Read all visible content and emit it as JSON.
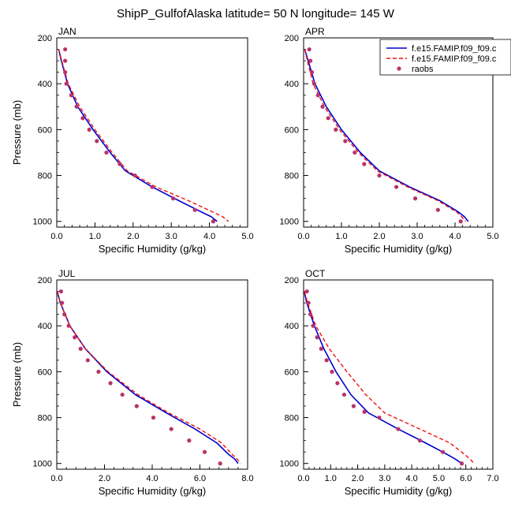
{
  "figure": {
    "title": "ShipP_GulfofAlaska  latitude= 50 N longitude= 145 W"
  },
  "legend": {
    "entries": [
      {
        "label": "f.e15.FAMIP.f09_f09.c",
        "style": "solid",
        "color": "#0000cc"
      },
      {
        "label": "f.e15.FAMIP.f09_f09.c",
        "style": "dashed",
        "color": "#ee1111"
      },
      {
        "label": "raobs",
        "style": "marker",
        "color": "#b8336a"
      }
    ]
  },
  "chart_data": [
    {
      "type": "line",
      "panel_label": "JAN",
      "xlabel": "Specific Humidity (g/kg)",
      "ylabel": "Pressure (mb)",
      "xlim": [
        0,
        5
      ],
      "ylim": [
        200,
        1025
      ],
      "xticks": [
        "0.0",
        "1.0",
        "2.0",
        "3.0",
        "4.0",
        "5.0"
      ],
      "xtick_values": [
        0,
        1,
        2,
        3,
        4,
        5
      ],
      "yticks": [
        "200",
        "400",
        "600",
        "800",
        "1000"
      ],
      "ytick_values": [
        200,
        400,
        600,
        800,
        1000
      ],
      "series": [
        {
          "name": "f.e15.FAMIP.f09_f09.c",
          "style": "solid",
          "color": "#0000cc",
          "x": [
            0.05,
            0.12,
            0.28,
            0.55,
            0.95,
            1.4,
            1.8,
            2.5,
            3.2,
            3.8,
            4.05,
            4.2
          ],
          "y": [
            250,
            300,
            400,
            500,
            600,
            700,
            780,
            850,
            910,
            960,
            980,
            1000
          ]
        },
        {
          "name": "f.e15.FAMIP.f09_f09.c",
          "style": "dashed",
          "color": "#ee1111",
          "x": [
            0.05,
            0.13,
            0.3,
            0.6,
            1.0,
            1.45,
            1.85,
            2.6,
            3.45,
            4.1,
            4.35,
            4.5
          ],
          "y": [
            250,
            300,
            400,
            500,
            600,
            700,
            780,
            850,
            910,
            960,
            980,
            1000
          ]
        },
        {
          "name": "raobs",
          "style": "marker",
          "color": "#b8336a",
          "x": [
            0.22,
            0.22,
            0.22,
            0.25,
            0.38,
            0.52,
            0.68,
            0.85,
            1.05,
            1.3,
            1.65,
            2.05,
            2.5,
            3.05,
            3.62,
            4.1
          ],
          "y": [
            250,
            300,
            350,
            400,
            450,
            500,
            550,
            600,
            650,
            700,
            750,
            800,
            850,
            900,
            950,
            1000
          ]
        }
      ]
    },
    {
      "type": "line",
      "panel_label": "APR",
      "xlabel": "Specific Humidity (g/kg)",
      "ylabel": "",
      "xlim": [
        0,
        5
      ],
      "ylim": [
        200,
        1025
      ],
      "xticks": [
        "0.0",
        "1.0",
        "2.0",
        "3.0",
        "4.0",
        "5.0"
      ],
      "xtick_values": [
        0,
        1,
        2,
        3,
        4,
        5
      ],
      "yticks": [
        "200",
        "400",
        "600",
        "800",
        "1000"
      ],
      "ytick_values": [
        200,
        400,
        600,
        800,
        1000
      ],
      "series": [
        {
          "name": "f.e15.FAMIP.f09_f09.c",
          "style": "solid",
          "color": "#0000cc",
          "x": [
            0.03,
            0.12,
            0.3,
            0.6,
            1.0,
            1.5,
            2.0,
            2.8,
            3.6,
            4.1,
            4.25,
            4.35
          ],
          "y": [
            250,
            300,
            400,
            500,
            600,
            700,
            780,
            850,
            910,
            960,
            980,
            1000
          ]
        },
        {
          "name": "f.e15.FAMIP.f09_f09.c",
          "style": "dashed",
          "color": "#ee1111",
          "x": [
            0.03,
            0.1,
            0.25,
            0.55,
            0.95,
            1.45,
            1.95,
            2.75,
            3.55,
            4.05,
            4.18,
            4.28
          ],
          "y": [
            250,
            300,
            400,
            500,
            600,
            700,
            780,
            850,
            910,
            960,
            980,
            1000
          ]
        },
        {
          "name": "raobs",
          "style": "marker",
          "color": "#b8336a",
          "x": [
            0.15,
            0.18,
            0.22,
            0.28,
            0.38,
            0.5,
            0.65,
            0.85,
            1.1,
            1.35,
            1.6,
            2.0,
            2.45,
            2.95,
            3.55,
            4.15
          ],
          "y": [
            250,
            300,
            350,
            400,
            450,
            500,
            550,
            600,
            650,
            700,
            750,
            800,
            850,
            900,
            950,
            1000
          ]
        }
      ]
    },
    {
      "type": "line",
      "panel_label": "JUL",
      "xlabel": "Specific Humidity (g/kg)",
      "ylabel": "Pressure (mb)",
      "xlim": [
        0,
        8
      ],
      "ylim": [
        200,
        1025
      ],
      "xticks": [
        "0.0",
        "2.0",
        "4.0",
        "6.0",
        "8.0"
      ],
      "xtick_values": [
        0,
        2,
        4,
        6,
        8
      ],
      "yticks": [
        "200",
        "400",
        "600",
        "800",
        "1000"
      ],
      "ytick_values": [
        200,
        400,
        600,
        800,
        1000
      ],
      "series": [
        {
          "name": "f.e15.FAMIP.f09_f09.c",
          "style": "solid",
          "color": "#0000cc",
          "x": [
            0.02,
            0.15,
            0.55,
            1.2,
            2.1,
            3.3,
            4.6,
            5.8,
            6.7,
            7.2,
            7.45,
            7.6
          ],
          "y": [
            250,
            300,
            400,
            500,
            600,
            700,
            780,
            850,
            910,
            960,
            980,
            1000
          ]
        },
        {
          "name": "f.e15.FAMIP.f09_f09.c",
          "style": "dashed",
          "color": "#ee1111",
          "x": [
            0.02,
            0.15,
            0.55,
            1.2,
            2.15,
            3.4,
            4.7,
            6.0,
            6.9,
            7.35,
            7.55,
            7.7
          ],
          "y": [
            250,
            300,
            400,
            500,
            600,
            700,
            780,
            850,
            910,
            960,
            980,
            1000
          ]
        },
        {
          "name": "raobs",
          "style": "marker",
          "color": "#b8336a",
          "x": [
            0.18,
            0.22,
            0.32,
            0.5,
            0.75,
            1.0,
            1.3,
            1.75,
            2.25,
            2.75,
            3.35,
            4.05,
            4.8,
            5.55,
            6.2,
            6.85
          ],
          "y": [
            250,
            300,
            350,
            400,
            450,
            500,
            550,
            600,
            650,
            700,
            750,
            800,
            850,
            900,
            950,
            1000
          ]
        }
      ]
    },
    {
      "type": "line",
      "panel_label": "OCT",
      "xlabel": "Specific Humidity (g/kg)",
      "ylabel": "",
      "xlim": [
        0,
        7
      ],
      "ylim": [
        200,
        1025
      ],
      "xticks": [
        "0.0",
        "1.0",
        "2.0",
        "3.0",
        "4.0",
        "5.0",
        "6.0",
        "7.0"
      ],
      "xtick_values": [
        0,
        1,
        2,
        3,
        4,
        5,
        6,
        7
      ],
      "yticks": [
        "200",
        "400",
        "600",
        "800",
        "1000"
      ],
      "ytick_values": [
        200,
        400,
        600,
        800,
        1000
      ],
      "series": [
        {
          "name": "f.e15.FAMIP.f09_f09.c",
          "style": "solid",
          "color": "#0000cc",
          "x": [
            0.02,
            0.12,
            0.4,
            0.75,
            1.2,
            1.75,
            2.4,
            3.5,
            4.5,
            5.3,
            5.6,
            5.85
          ],
          "y": [
            250,
            300,
            400,
            500,
            600,
            700,
            780,
            850,
            910,
            960,
            980,
            1000
          ]
        },
        {
          "name": "f.e15.FAMIP.f09_f09.c",
          "style": "dashed",
          "color": "#ee1111",
          "x": [
            0.03,
            0.15,
            0.45,
            0.95,
            1.6,
            2.3,
            3.0,
            4.3,
            5.4,
            5.95,
            6.15,
            6.3
          ],
          "y": [
            250,
            300,
            400,
            500,
            600,
            700,
            780,
            850,
            910,
            960,
            980,
            1000
          ]
        },
        {
          "name": "raobs",
          "style": "marker",
          "color": "#b8336a",
          "x": [
            0.12,
            0.18,
            0.25,
            0.35,
            0.5,
            0.65,
            0.85,
            1.05,
            1.25,
            1.5,
            1.85,
            2.25,
            2.8,
            3.5,
            4.3,
            5.15,
            5.85
          ],
          "y": [
            250,
            300,
            350,
            400,
            450,
            500,
            550,
            600,
            650,
            700,
            750,
            775,
            800,
            850,
            900,
            950,
            1000
          ]
        }
      ]
    }
  ]
}
